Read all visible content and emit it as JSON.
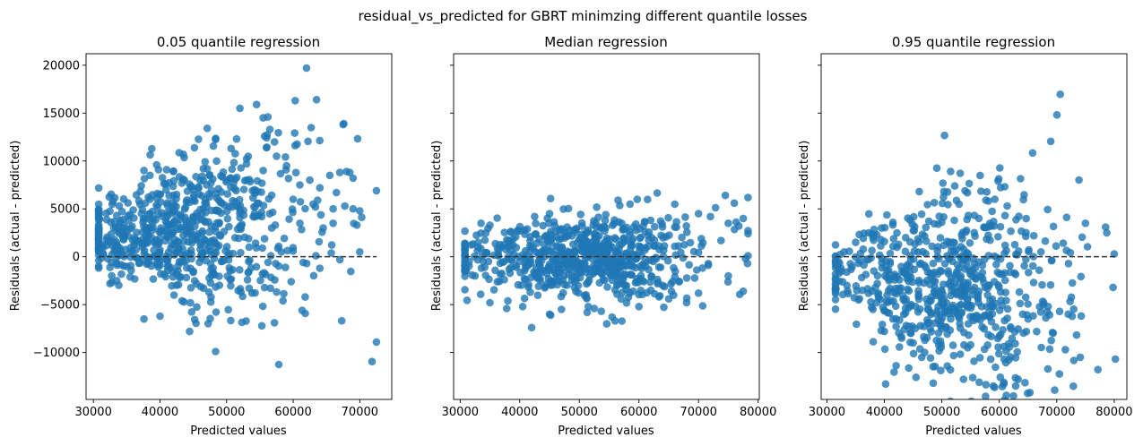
{
  "figure": {
    "suptitle": "residual_vs_predicted for GBRT minimzing different quantile losses"
  },
  "colors": {
    "points": "#1f77b4",
    "reference_line": "#333333",
    "axes": "#000000"
  },
  "chart_data": [
    {
      "type": "scatter",
      "title": "0.05 quantile regression",
      "xlabel": "Predicted values",
      "ylabel": "Residuals (actual - predicted)",
      "xlim": [
        28900,
        74800
      ],
      "ylim": [
        -14900,
        21200
      ],
      "xticks": [
        30000,
        40000,
        50000,
        60000,
        70000
      ],
      "xtick_labels": [
        "30000",
        "40000",
        "50000",
        "60000",
        "70000"
      ],
      "yticks": [
        -10000,
        -5000,
        0,
        5000,
        10000,
        15000,
        20000
      ],
      "ytick_labels": [
        "−10000",
        "−5000",
        "0",
        "5000",
        "10000",
        "15000",
        "20000"
      ],
      "ytick_labels_visible": true,
      "reference_line": {
        "y": 0,
        "x_range": [
          30800,
          72500
        ],
        "style": "dashed"
      },
      "sampled_cloud": {
        "n": 700,
        "x_center": 44000,
        "x_spread": 9500,
        "x_min": 30800,
        "x_max": 72500,
        "y_center": 2000,
        "y_spread": 1900,
        "y_spread_growth": 7e-05,
        "y_mean_growth": 0.06
      },
      "points": [
        [
          62000,
          19700
        ],
        [
          63500,
          16400
        ],
        [
          54500,
          15900
        ],
        [
          52000,
          15500
        ],
        [
          55500,
          14500
        ],
        [
          56200,
          14600
        ],
        [
          67600,
          13900
        ],
        [
          67500,
          13800
        ],
        [
          56500,
          13300
        ],
        [
          57200,
          12000
        ],
        [
          51500,
          12300
        ],
        [
          43500,
          10700
        ],
        [
          48500,
          10000
        ],
        [
          37600,
          9000
        ],
        [
          39500,
          9600
        ],
        [
          41000,
          9100
        ],
        [
          42000,
          8900
        ],
        [
          46500,
          9200
        ],
        [
          55500,
          9000
        ],
        [
          57500,
          10500
        ],
        [
          59000,
          9500
        ],
        [
          61000,
          7500
        ],
        [
          62500,
          8000
        ],
        [
          64000,
          7200
        ],
        [
          65500,
          8500
        ],
        [
          67000,
          8800
        ],
        [
          68500,
          8800
        ],
        [
          69000,
          8200
        ],
        [
          72500,
          6900
        ],
        [
          66500,
          6700
        ],
        [
          68000,
          8900
        ],
        [
          56000,
          11400
        ],
        [
          53000,
          9700
        ],
        [
          50000,
          8000
        ],
        [
          45000,
          7000
        ],
        [
          47000,
          7500
        ],
        [
          38500,
          8500
        ],
        [
          40000,
          6500
        ],
        [
          42500,
          6500
        ],
        [
          60000,
          6000
        ],
        [
          63000,
          5500
        ],
        [
          66000,
          5000
        ],
        [
          70000,
          4800
        ],
        [
          37600,
          -6500
        ],
        [
          40000,
          -6200
        ],
        [
          32500,
          -2800
        ],
        [
          33500,
          -2500
        ],
        [
          59700,
          -2600
        ],
        [
          64000,
          -1200
        ],
        [
          67000,
          -300
        ],
        [
          70000,
          500
        ],
        [
          61500,
          -600
        ],
        [
          48000,
          -1800
        ],
        [
          45000,
          -1500
        ],
        [
          35000,
          -1000
        ],
        [
          30800,
          -1000
        ],
        [
          31500,
          300
        ],
        [
          32000,
          1200
        ],
        [
          33500,
          4300
        ],
        [
          35500,
          4400
        ],
        [
          37000,
          5500
        ],
        [
          38500,
          6000
        ],
        [
          64500,
          3000
        ],
        [
          66000,
          3500
        ],
        [
          61000,
          3500
        ],
        [
          69000,
          5000
        ]
      ]
    },
    {
      "type": "scatter",
      "title": "Median regression",
      "xlabel": "Predicted values",
      "ylabel": "Residuals (actual - predicted)",
      "xlim": [
        28900,
        80200
      ],
      "ylim": [
        -14900,
        21200
      ],
      "xticks": [
        30000,
        40000,
        50000,
        60000,
        70000,
        80000
      ],
      "xtick_labels": [
        "30000",
        "40000",
        "50000",
        "60000",
        "70000",
        "80000"
      ],
      "yticks": [
        -10000,
        -5000,
        0,
        5000,
        10000,
        15000,
        20000
      ],
      "ytick_labels": [
        "−10000",
        "−5000",
        "0",
        "5000",
        "10000",
        "15000",
        "20000"
      ],
      "ytick_labels_visible": false,
      "reference_line": {
        "y": 0,
        "x_range": [
          30800,
          78300
        ],
        "style": "dashed"
      },
      "sampled_cloud": {
        "n": 700,
        "x_center": 50000,
        "x_spread": 10500,
        "x_min": 30800,
        "x_max": 78300,
        "y_center": 0,
        "y_spread": 1500,
        "y_spread_growth": 2e-05,
        "y_mean_growth": 0.0
      },
      "points": [
        [
          74500,
          6400
        ],
        [
          56500,
          5900
        ],
        [
          58500,
          5500
        ],
        [
          76000,
          5600
        ],
        [
          70000,
          4500
        ],
        [
          72000,
          4200
        ],
        [
          42500,
          4200
        ],
        [
          45000,
          4500
        ],
        [
          33500,
          3500
        ],
        [
          35000,
          3300
        ],
        [
          77500,
          4000
        ],
        [
          75000,
          3500
        ],
        [
          42000,
          -7400
        ],
        [
          56000,
          -6700
        ],
        [
          55500,
          -6300
        ],
        [
          45000,
          -6000
        ],
        [
          45200,
          -6100
        ],
        [
          51500,
          -5200
        ],
        [
          52500,
          -5400
        ],
        [
          47000,
          -5500
        ],
        [
          35000,
          -4800
        ],
        [
          38000,
          -4600
        ],
        [
          40500,
          -5200
        ],
        [
          60000,
          -5200
        ],
        [
          65000,
          -4400
        ],
        [
          68000,
          -4800
        ],
        [
          70000,
          -3800
        ],
        [
          77500,
          -3600
        ],
        [
          75000,
          -2000
        ],
        [
          78300,
          100
        ],
        [
          31000,
          -1000
        ],
        [
          31500,
          -500
        ],
        [
          32500,
          -2000
        ],
        [
          33000,
          1500
        ],
        [
          64000,
          -3000
        ],
        [
          62000,
          -3500
        ]
      ]
    },
    {
      "type": "scatter",
      "title": "0.95 quantile regression",
      "xlabel": "Predicted values",
      "ylabel": "Residuals (actual - predicted)",
      "xlim": [
        29000,
        82200
      ],
      "ylim": [
        -14900,
        21200
      ],
      "xticks": [
        30000,
        40000,
        50000,
        60000,
        70000,
        80000
      ],
      "xtick_labels": [
        "30000",
        "40000",
        "50000",
        "60000",
        "70000",
        "80000"
      ],
      "yticks": [
        -10000,
        -5000,
        0,
        5000,
        10000,
        15000,
        20000
      ],
      "ytick_labels": [
        "−10000",
        "−5000",
        "0",
        "5000",
        "10000",
        "15000",
        "20000"
      ],
      "ytick_labels_visible": false,
      "reference_line": {
        "y": 0,
        "x_range": [
          31500,
          80200
        ],
        "style": "dashed"
      },
      "sampled_cloud": {
        "n": 700,
        "x_center": 51000,
        "x_spread": 10500,
        "x_min": 31500,
        "x_max": 80200,
        "y_center": -2300,
        "y_spread": 1800,
        "y_spread_growth": 9e-05,
        "y_mean_growth": -0.04
      },
      "points": [
        [
          48500,
          -13200
        ],
        [
          56500,
          -13100
        ],
        [
          51500,
          -11800
        ],
        [
          58500,
          -10700
        ],
        [
          46500,
          -10500
        ],
        [
          47000,
          -10000
        ],
        [
          45000,
          -9000
        ],
        [
          54500,
          -9500
        ],
        [
          55000,
          -9200
        ],
        [
          71500,
          -9700
        ],
        [
          53000,
          5500
        ],
        [
          61000,
          4300
        ],
        [
          75000,
          3500
        ],
        [
          78500,
          3100
        ],
        [
          78700,
          2500
        ],
        [
          80000,
          300
        ],
        [
          79800,
          -3200
        ],
        [
          72000,
          -6000
        ],
        [
          68500,
          -5200
        ],
        [
          65000,
          -6500
        ],
        [
          40000,
          -7800
        ],
        [
          41500,
          -6500
        ],
        [
          38000,
          -5500
        ],
        [
          35500,
          -4500
        ],
        [
          33500,
          -3000
        ],
        [
          32000,
          -500
        ],
        [
          31800,
          -1000
        ],
        [
          33000,
          500
        ],
        [
          35000,
          1500
        ],
        [
          38000,
          2000
        ],
        [
          39500,
          3000
        ],
        [
          60000,
          -8300
        ],
        [
          62000,
          -7500
        ],
        [
          43000,
          -8500
        ],
        [
          50000,
          -7500
        ],
        [
          66000,
          2200
        ]
      ]
    }
  ]
}
